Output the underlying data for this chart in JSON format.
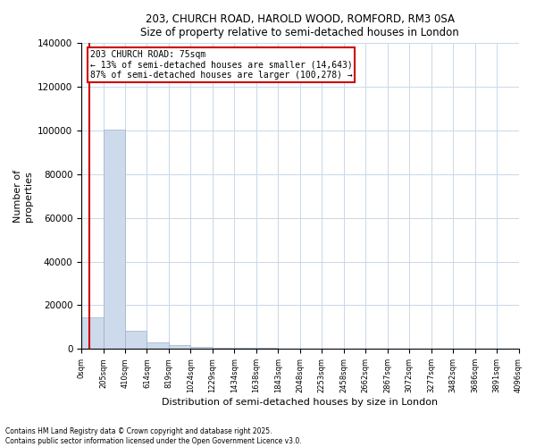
{
  "title": "203, CHURCH ROAD, HAROLD WOOD, ROMFORD, RM3 0SA",
  "subtitle": "Size of property relative to semi-detached houses in London",
  "xlabel": "Distribution of semi-detached houses by size in London",
  "ylabel": "Number of\nproperties",
  "property_size": 75,
  "annotation_text_line1": "203 CHURCH ROAD: 75sqm",
  "annotation_text_line2": "← 13% of semi-detached houses are smaller (14,643)",
  "annotation_text_line3": "87% of semi-detached houses are larger (100,278) →",
  "bar_color": "#cddaeb",
  "bar_edge_color": "#9ab0c8",
  "vline_color": "#cc0000",
  "annotation_box_edge_color": "#cc0000",
  "footer_line1": "Contains HM Land Registry data © Crown copyright and database right 2025.",
  "footer_line2": "Contains public sector information licensed under the Open Government Licence v3.0.",
  "ylim": [
    0,
    140000
  ],
  "yticks": [
    0,
    20000,
    40000,
    60000,
    80000,
    100000,
    120000,
    140000
  ],
  "bin_edges": [
    0,
    205,
    410,
    614,
    819,
    1024,
    1229,
    1434,
    1638,
    1843,
    2048,
    2253,
    2458,
    2662,
    2867,
    3072,
    3277,
    3482,
    3686,
    3891,
    4096
  ],
  "bar_heights": [
    14643,
    100278,
    8500,
    3200,
    1800,
    1100,
    700,
    500,
    380,
    280,
    220,
    180,
    150,
    120,
    100,
    85,
    70,
    60,
    50,
    42
  ]
}
